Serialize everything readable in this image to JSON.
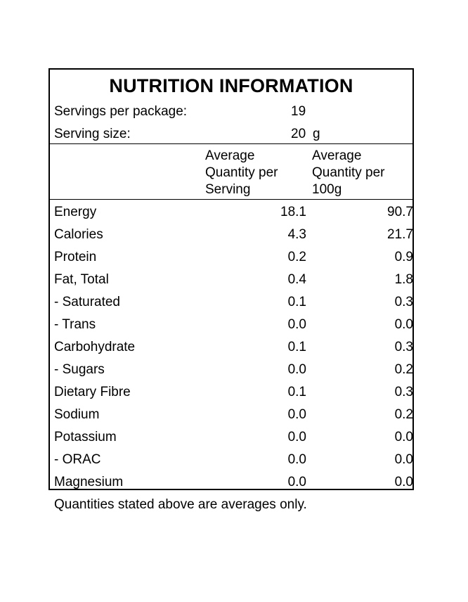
{
  "title": "NUTRITION INFORMATION",
  "servings": {
    "per_package_label": "Servings per package:",
    "per_package_value": "19",
    "size_label": "Serving size:",
    "size_value": "20",
    "size_unit": "g"
  },
  "headers": {
    "per_serving": [
      "Average",
      "Quantity per",
      "Serving"
    ],
    "per_100g": [
      "Average",
      "Quantity per",
      "100g"
    ]
  },
  "rows": [
    {
      "name": "Energy",
      "serving": "18.1",
      "per100": "90.7"
    },
    {
      "name": "Calories",
      "serving": "4.3",
      "per100": "21.7"
    },
    {
      "name": "Protein",
      "serving": "0.2",
      "per100": "0.9"
    },
    {
      "name": "Fat, Total",
      "serving": "0.4",
      "per100": "1.8"
    },
    {
      "name": "- Saturated",
      "serving": "0.1",
      "per100": "0.3"
    },
    {
      "name": "- Trans",
      "serving": "0.0",
      "per100": "0.0"
    },
    {
      "name": "Carbohydrate",
      "serving": "0.1",
      "per100": "0.3"
    },
    {
      "name": "- Sugars",
      "serving": "0.0",
      "per100": "0.2"
    },
    {
      "name": "Dietary Fibre",
      "serving": "0.1",
      "per100": "0.3"
    },
    {
      "name": "Sodium",
      "serving": "0.0",
      "per100": "0.2"
    },
    {
      "name": "Potassium",
      "serving": "0.0",
      "per100": "0.0"
    },
    {
      "name": "- ORAC",
      "serving": "0.0",
      "per100": "0.0"
    },
    {
      "name": "Magnesium",
      "serving": "0.0",
      "per100": "0.0"
    }
  ],
  "footer": "Quantities stated above are averages only."
}
